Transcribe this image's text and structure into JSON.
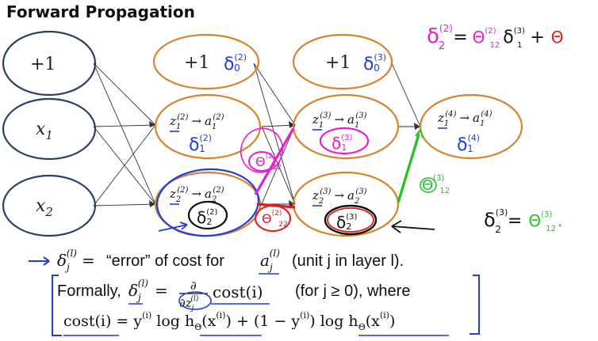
{
  "title": "Forward Propagation",
  "layer1": {
    "bias": "+1",
    "x1": "x",
    "x1_sub": "1",
    "x2": "x",
    "x2_sub": "2"
  },
  "layer2": {
    "bias": "+1",
    "bias_delta": "δ",
    "bias_delta_sub": "0",
    "bias_delta_sup": "(2)",
    "unit1": {
      "z": "z",
      "sub": "1",
      "sup": "(2)",
      "arrow": "→",
      "a": "a",
      "a_sub": "1",
      "a_sup": "(2)",
      "delta": "δ",
      "delta_sub": "1",
      "delta_sup": "(2)"
    },
    "unit2": {
      "z": "z",
      "sub": "2",
      "sup": "(2)",
      "arrow": "→",
      "a": "a",
      "a_sub": "2",
      "a_sup": "(2)",
      "delta": "δ",
      "delta_sub": "2",
      "delta_sup": "(2)"
    }
  },
  "layer3": {
    "bias": "+1",
    "bias_delta": "δ",
    "bias_delta_sub": "0",
    "bias_delta_sup": "(3)",
    "unit1": {
      "z": "z",
      "sub": "1",
      "sup": "(3)",
      "arrow": "→",
      "a": "a",
      "a_sub": "1",
      "a_sup": "(3)",
      "delta": "δ",
      "delta_sub": "1",
      "delta_sup": "(3)"
    },
    "unit2": {
      "z": "z",
      "sub": "2",
      "sup": "(3)",
      "arrow": "→",
      "a": "a",
      "a_sub": "2",
      "a_sup": "(3)",
      "delta": "δ",
      "delta_sub": "2",
      "delta_sup": "(3)"
    }
  },
  "layer4": {
    "unit1": {
      "z": "z",
      "sub": "1",
      "sup": "(4)",
      "arrow": "→",
      "a": "a",
      "a_sub": "1",
      "a_sup": "(4)",
      "delta": "δ",
      "delta_sub": "1",
      "delta_sup": "(4)"
    }
  },
  "annotations": {
    "theta_pink": {
      "text": "Θ",
      "sup": "(2)",
      "sub": "12"
    },
    "theta_red": {
      "text": "Θ",
      "sup": "(2)",
      "sub": "22"
    },
    "theta_green": {
      "text": "Θ",
      "sup": "(3)",
      "sub": "12"
    },
    "eq_top": {
      "delta": "δ",
      "sup": "(2)",
      "sub": "2",
      "eq": "=",
      "theta": "Θ",
      "theta_sup": "(2)",
      "theta_sub": "12",
      "delta2": "δ",
      "delta2_sup": "(3)",
      "delta2_sub": "1",
      "plus": "+",
      "theta2": "Θ"
    },
    "eq_right": {
      "delta": "δ",
      "sup": "(3)",
      "sub": "2",
      "eq": "=",
      "theta": "Θ",
      "theta_sup": "(3)",
      "theta_sub": "12",
      "dot": "."
    }
  },
  "definition": {
    "delta": "δ",
    "sub": "j",
    "sup": "(l)",
    "eq": "=",
    "quote": "“error” of cost for",
    "a": "a",
    "a_sub": "j",
    "a_sup": "(l)",
    "paren": "(unit j in layer l)."
  },
  "formally": {
    "lead": "Formally,",
    "delta": "δ",
    "sub": "j",
    "sup": "(l)",
    "eq": "=",
    "num": "∂",
    "den": "∂z",
    "den_sub": "j",
    "den_sup": "(l)",
    "cost": "cost(i)",
    "cond": "(for j ≥ 0), where"
  },
  "cost_def": {
    "text": "cost(i) = y",
    "sup1": "(i)",
    "part2": " log h",
    "sub2": "Θ",
    "part3": "(x",
    "sup3": "(i)",
    "part4": ") + (1 − y",
    "sup4": "(i)",
    "part5": ") log h",
    "sub5": "Θ",
    "part6": "(x",
    "sup6": "(i)",
    "part7": ")"
  },
  "colors": {
    "orange": "#d9822b",
    "navy": "#2b3f66",
    "blue": "#1f3fd6",
    "pink": "#e81fd0",
    "red": "#e01b1b",
    "green": "#27c427",
    "black": "#111111"
  }
}
